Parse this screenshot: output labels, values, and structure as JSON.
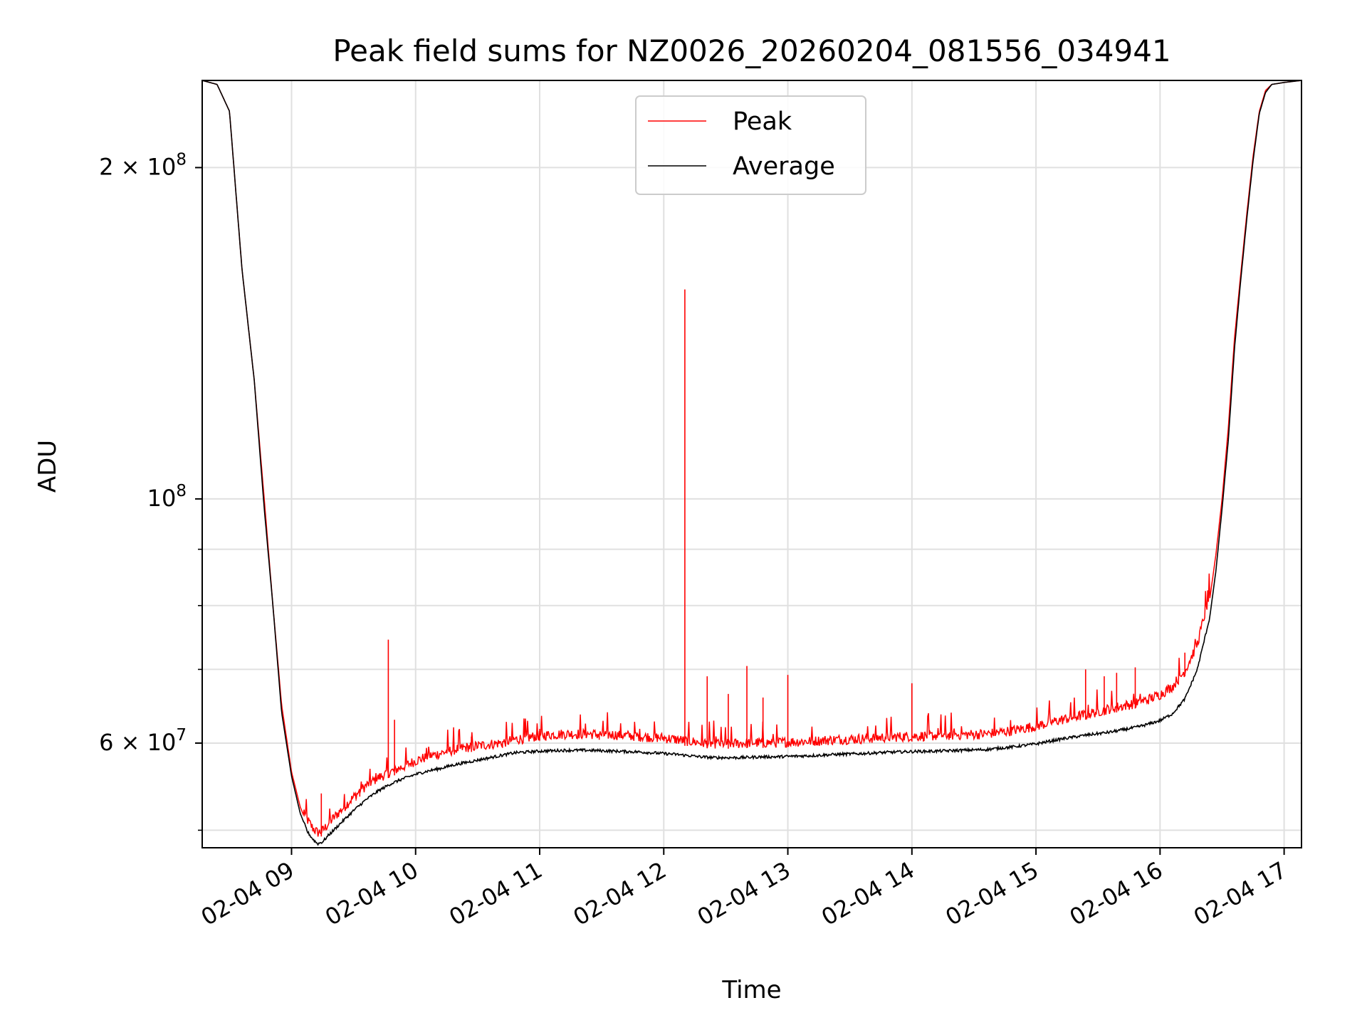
{
  "chart_data": {
    "type": "line",
    "title": "Peak field sums for NZ0026_20260204_081556_034941",
    "xlabel": "Time",
    "ylabel": "ADU",
    "x_unit": "hours",
    "xlim": [
      8.28,
      17.14
    ],
    "ylim": [
      48200000,
      240000000
    ],
    "y_scale": "log",
    "x_ticks": [
      {
        "value": 9,
        "label": "02-04 09"
      },
      {
        "value": 10,
        "label": "02-04 10"
      },
      {
        "value": 11,
        "label": "02-04 11"
      },
      {
        "value": 12,
        "label": "02-04 12"
      },
      {
        "value": 13,
        "label": "02-04 13"
      },
      {
        "value": 14,
        "label": "02-04 14"
      },
      {
        "value": 15,
        "label": "02-04 15"
      },
      {
        "value": 16,
        "label": "02-04 16"
      },
      {
        "value": 17,
        "label": "02-04 17"
      }
    ],
    "y_major_ticks": [
      {
        "value": 60000000,
        "base": "6",
        "exp": "7",
        "mult": true
      },
      {
        "value": 100000000,
        "base": "10",
        "exp": "8",
        "mult": false
      },
      {
        "value": 200000000,
        "base": "2",
        "exp": "8",
        "mult": true
      }
    ],
    "y_minor_ticks": [
      50000000,
      70000000,
      80000000,
      90000000
    ],
    "grid": true,
    "legend_position": "top-center",
    "series": [
      {
        "name": "Peak",
        "color": "#ff0000",
        "x": [
          8.28,
          8.4,
          8.5,
          8.6,
          8.7,
          8.78,
          8.85,
          8.92,
          9.0,
          9.07,
          9.13,
          9.17,
          9.21,
          9.25,
          9.3,
          9.4,
          9.5,
          9.6,
          9.7,
          9.8,
          9.9,
          10.0,
          10.1,
          10.2,
          10.3,
          10.4,
          10.5,
          10.6,
          10.7,
          10.8,
          10.9,
          11.0,
          11.1,
          11.2,
          11.3,
          11.4,
          11.5,
          11.6,
          11.7,
          11.8,
          11.9,
          12.0,
          12.1,
          12.2,
          12.3,
          12.4,
          12.5,
          12.6,
          12.7,
          12.8,
          12.9,
          13.0,
          13.2,
          13.4,
          13.6,
          13.8,
          14.0,
          14.2,
          14.4,
          14.6,
          14.8,
          15.0,
          15.2,
          15.4,
          15.6,
          15.8,
          15.9,
          16.0,
          16.1,
          16.2,
          16.3,
          16.4,
          16.45,
          16.5,
          16.55,
          16.6,
          16.65,
          16.7,
          16.75,
          16.8,
          16.85,
          16.9,
          17.0,
          17.14
        ],
        "values": [
          240000000,
          238000000,
          225000000,
          162000000,
          128000000,
          100000000,
          80000000,
          65000000,
          56500000,
          52500000,
          50500000,
          49700000,
          49200000,
          49400000,
          50200000,
          51600000,
          53000000,
          54300000,
          55200000,
          55900000,
          56500000,
          57200000,
          57700000,
          58100000,
          58500000,
          58800000,
          59000000,
          59200000,
          59400000,
          59800000,
          60000000,
          60300000,
          60400000,
          60500000,
          60500000,
          60500000,
          60400000,
          60400000,
          60300000,
          60200000,
          60100000,
          60000000,
          59800000,
          59600000,
          59400000,
          59300000,
          59300000,
          59300000,
          59400000,
          59400000,
          59400000,
          59500000,
          59600000,
          59800000,
          59900000,
          60100000,
          60200000,
          60300000,
          60400000,
          60500000,
          60900000,
          61500000,
          62300000,
          63000000,
          63800000,
          64500000,
          65000000,
          65700000,
          66800000,
          69000000,
          73000000,
          81000000,
          89000000,
          100000000,
          116000000,
          140000000,
          160000000,
          182000000,
          205000000,
          225000000,
          235000000,
          238000000,
          239000000,
          240000000
        ],
        "spikes": [
          {
            "x": 9.24,
            "value": 54000000
          },
          {
            "x": 9.52,
            "value": 53200000
          },
          {
            "x": 9.55,
            "value": 54500000
          },
          {
            "x": 9.78,
            "value": 74500000
          },
          {
            "x": 9.83,
            "value": 63000000
          },
          {
            "x": 10.45,
            "value": 60800000
          },
          {
            "x": 10.7,
            "value": 60000000
          },
          {
            "x": 11.0,
            "value": 61800000
          },
          {
            "x": 11.48,
            "value": 61200000
          },
          {
            "x": 12.17,
            "value": 155000000
          },
          {
            "x": 12.35,
            "value": 69000000
          },
          {
            "x": 12.52,
            "value": 66500000
          },
          {
            "x": 12.67,
            "value": 70500000
          },
          {
            "x": 12.8,
            "value": 66000000
          },
          {
            "x": 13.0,
            "value": 69200000
          },
          {
            "x": 14.0,
            "value": 68000000
          },
          {
            "x": 15.4,
            "value": 70000000
          },
          {
            "x": 15.55,
            "value": 69000000
          },
          {
            "x": 15.65,
            "value": 69500000
          },
          {
            "x": 15.8,
            "value": 70300000
          },
          {
            "x": 16.2,
            "value": 72500000
          }
        ]
      },
      {
        "name": "Average",
        "color": "#000000",
        "x": [
          8.28,
          8.4,
          8.5,
          8.6,
          8.7,
          8.78,
          8.85,
          8.92,
          9.0,
          9.07,
          9.13,
          9.17,
          9.21,
          9.25,
          9.3,
          9.4,
          9.5,
          9.6,
          9.7,
          9.8,
          9.9,
          10.0,
          10.1,
          10.2,
          10.3,
          10.4,
          10.5,
          10.6,
          10.7,
          10.8,
          10.9,
          11.0,
          11.1,
          11.2,
          11.3,
          11.4,
          11.5,
          11.6,
          11.7,
          11.8,
          11.9,
          12.0,
          12.1,
          12.2,
          12.3,
          12.4,
          12.5,
          12.6,
          12.7,
          12.8,
          12.9,
          13.0,
          13.2,
          13.4,
          13.6,
          13.8,
          14.0,
          14.2,
          14.4,
          14.6,
          14.8,
          15.0,
          15.2,
          15.4,
          15.6,
          15.8,
          15.9,
          16.0,
          16.1,
          16.2,
          16.3,
          16.4,
          16.45,
          16.5,
          16.55,
          16.6,
          16.65,
          16.7,
          16.75,
          16.8,
          16.85,
          16.9,
          17.0,
          17.14
        ],
        "values": [
          240000000,
          238000000,
          225000000,
          162000000,
          128000000,
          98000000,
          80000000,
          64000000,
          56000000,
          51800000,
          49800000,
          49100000,
          48600000,
          48800000,
          49500000,
          50800000,
          52100000,
          53300000,
          54300000,
          55100000,
          55700000,
          56200000,
          56600000,
          56900000,
          57300000,
          57600000,
          57900000,
          58200000,
          58500000,
          58800000,
          58900000,
          59000000,
          59050000,
          59100000,
          59100000,
          59100000,
          59050000,
          59000000,
          58950000,
          58900000,
          58800000,
          58700000,
          58600000,
          58450000,
          58300000,
          58200000,
          58200000,
          58200000,
          58250000,
          58300000,
          58300000,
          58350000,
          58450000,
          58600000,
          58700000,
          58850000,
          58950000,
          59000000,
          59100000,
          59200000,
          59500000,
          59900000,
          60500000,
          61000000,
          61400000,
          62000000,
          62400000,
          62900000,
          63800000,
          65800000,
          70000000,
          78000000,
          86000000,
          98000000,
          113000000,
          137000000,
          158000000,
          180000000,
          203000000,
          224000000,
          234000000,
          238000000,
          239000000,
          240000000
        ]
      }
    ]
  }
}
